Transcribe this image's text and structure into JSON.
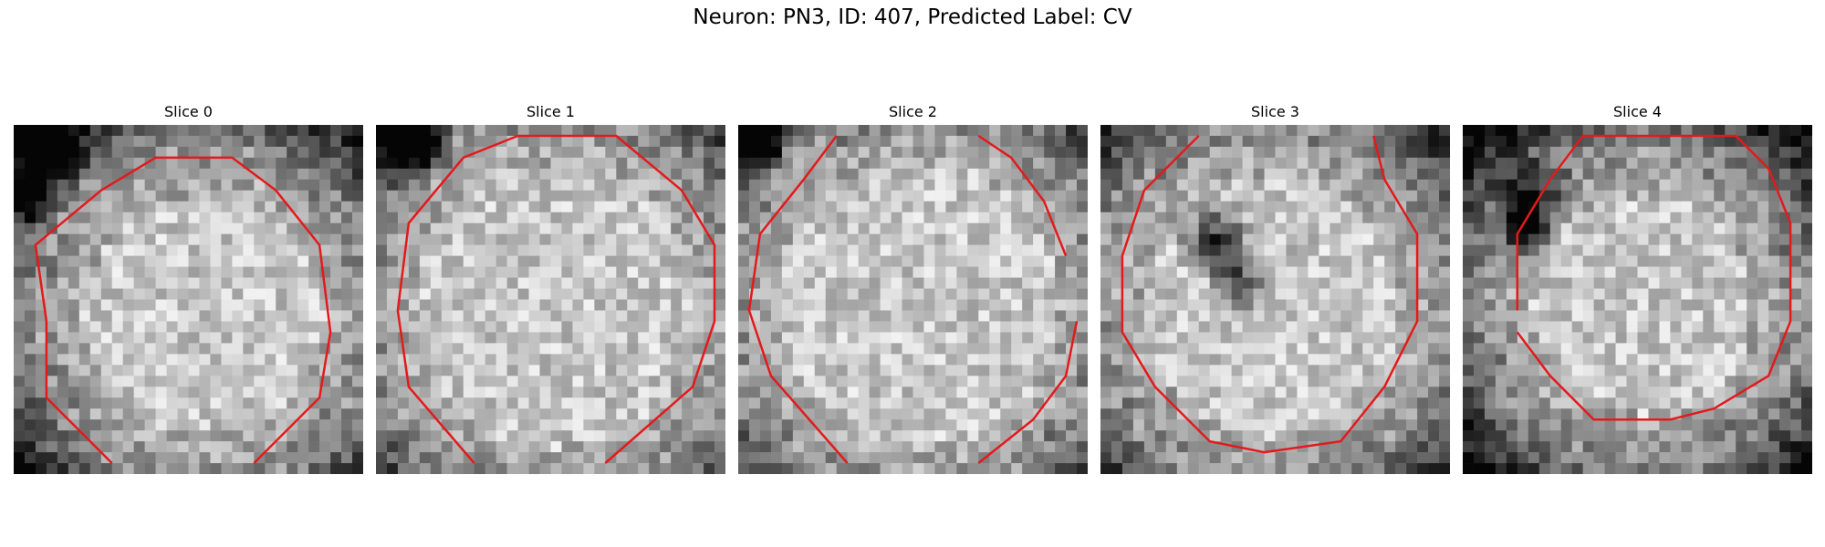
{
  "figure": {
    "title": "Neuron: PN3, ID: 407, Predicted Label: CV"
  },
  "panels": [
    {
      "title": "Slice 0"
    },
    {
      "title": "Slice 1"
    },
    {
      "title": "Slice 2"
    },
    {
      "title": "Slice 3"
    },
    {
      "title": "Slice 4"
    }
  ],
  "colors": {
    "contour": "#e31a1c",
    "background": "#ffffff"
  }
}
